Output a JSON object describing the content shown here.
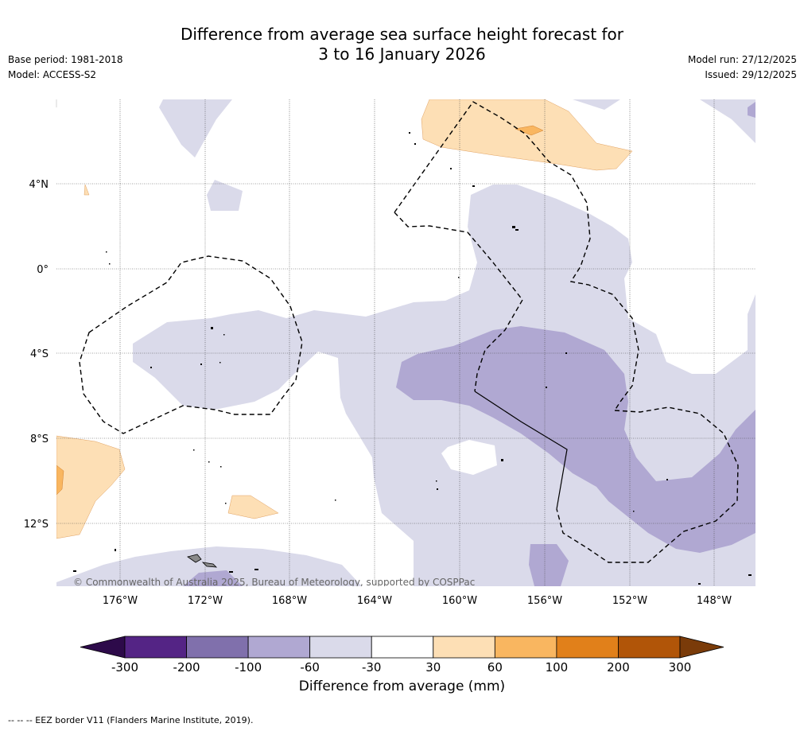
{
  "title_line1": "Difference from average sea surface height forecast for",
  "title_line2": "3 to 16 January 2026",
  "meta_left": {
    "base_period": "Base period: 1981-2018",
    "model": "Model: ACCESS-S2"
  },
  "meta_right": {
    "model_run": "Model run: 27/12/2025",
    "issued": "Issued: 29/12/2025"
  },
  "copyright": "© Commonwealth of Australia 2025, Bureau of Meteorology, supported by COSPPac",
  "lat_labels": [
    "4°N",
    "0°",
    "4°S",
    "8°S",
    "12°S"
  ],
  "lon_labels": [
    "176°W",
    "172°W",
    "168°W",
    "164°W",
    "160°W",
    "156°W",
    "152°W",
    "148°W"
  ],
  "colorbar": {
    "label": "Difference from average (mm)",
    "ticks": [
      "-300",
      "-200",
      "-100",
      "-60",
      "-30",
      "30",
      "60",
      "100",
      "200",
      "300"
    ],
    "colors": {
      "under": "#2d0a4a",
      "bins": [
        "#542485",
        "#8070ac",
        "#b0a8d2",
        "#dadaea",
        "#ffffff",
        "#fddfb5",
        "#f9b660",
        "#e1801a",
        "#b15508"
      ],
      "over": "#7a3b09"
    }
  },
  "footer": "-- -- -- EEZ border V11 (Flanders Marine Institute, 2019).",
  "colors": {
    "light_purple": "#dadaea",
    "mid_purple": "#b0a8d2",
    "light_orange": "#fddfb5",
    "orange": "#f9b660",
    "land": "#8a8a8a"
  }
}
